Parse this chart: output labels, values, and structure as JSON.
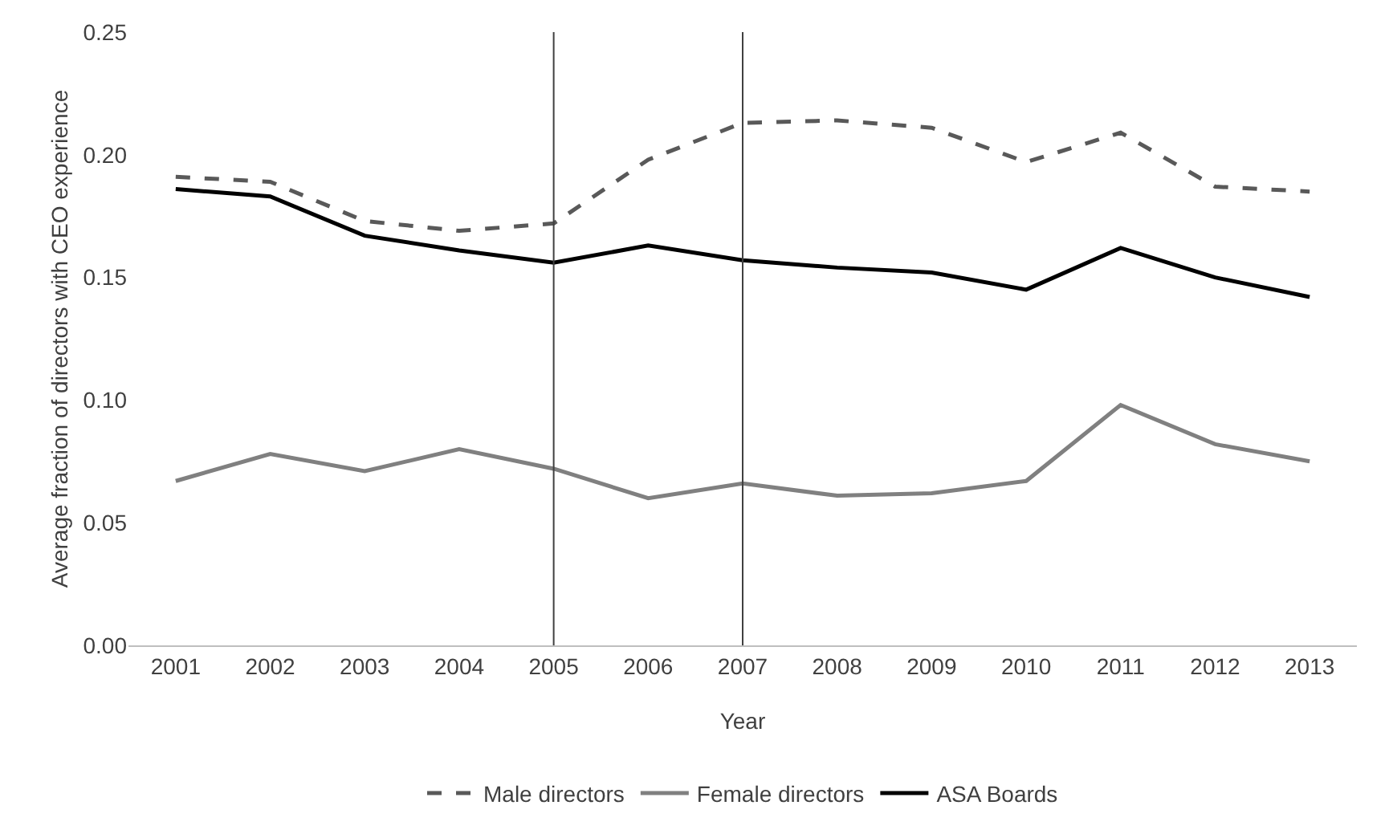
{
  "chart_data": {
    "type": "line",
    "xlabel": "Year",
    "ylabel": "Average fraction of directors with CEO experience",
    "categories": [
      "2001",
      "2002",
      "2003",
      "2004",
      "2005",
      "2006",
      "2007",
      "2008",
      "2009",
      "2010",
      "2011",
      "2012",
      "2013"
    ],
    "series": [
      {
        "name": "Male directors",
        "color": "#595959",
        "line_style": "dashed",
        "values": [
          0.191,
          0.189,
          0.173,
          0.169,
          0.172,
          0.198,
          0.213,
          0.214,
          0.211,
          0.197,
          0.209,
          0.187,
          0.185
        ]
      },
      {
        "name": "Female directors",
        "color": "#808080",
        "line_style": "solid",
        "values": [
          0.067,
          0.078,
          0.071,
          0.08,
          0.072,
          0.06,
          0.066,
          0.061,
          0.062,
          0.067,
          0.098,
          0.082,
          0.075
        ]
      },
      {
        "name": "ASA Boards",
        "color": "#000000",
        "line_style": "solid",
        "values": [
          0.186,
          0.183,
          0.167,
          0.161,
          0.156,
          0.163,
          0.157,
          0.154,
          0.152,
          0.145,
          0.162,
          0.15,
          0.142
        ]
      }
    ],
    "ylim": [
      0,
      0.25
    ],
    "yticks": [
      {
        "value": 0,
        "label": "0.00"
      },
      {
        "value": 0.05,
        "label": "0.05"
      },
      {
        "value": 0.1,
        "label": "0.10"
      },
      {
        "value": 0.15,
        "label": "0.15"
      },
      {
        "value": 0.2,
        "label": "0.20"
      },
      {
        "value": 0.25,
        "label": "0.25"
      }
    ],
    "ref_lines": [
      {
        "axis": "x",
        "value": "2005",
        "color": "#404040"
      },
      {
        "axis": "x",
        "value": "2007",
        "color": "#404040"
      }
    ],
    "grid": false,
    "legend": "bottom",
    "marker": "none"
  }
}
